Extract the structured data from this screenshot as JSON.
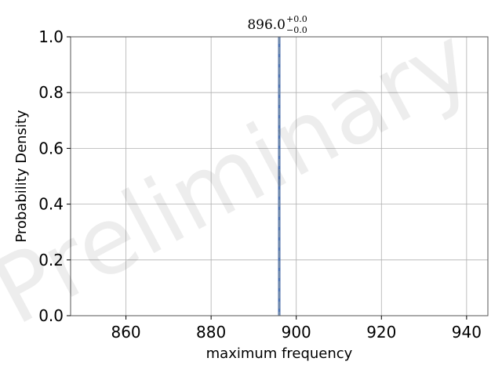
{
  "chart_data": {
    "type": "line",
    "title": "",
    "xlabel": "maximum frequency",
    "ylabel": "Probability Density",
    "xlim": [
      847,
      945
    ],
    "ylim": [
      0,
      1
    ],
    "x_ticks": [
      860,
      880,
      900,
      920,
      940
    ],
    "y_ticks": [
      0.0,
      0.2,
      0.4,
      0.6,
      0.8,
      1.0
    ],
    "x_tick_labels": [
      "860",
      "880",
      "900",
      "920",
      "940"
    ],
    "y_tick_labels": [
      "0.0",
      "0.2",
      "0.4",
      "0.6",
      "0.8",
      "1.0"
    ],
    "grid": true,
    "vertical_lines": [
      {
        "x": 896.0,
        "style": "solid",
        "color": "#4c72b0"
      },
      {
        "x": 896.0,
        "style": "dashed",
        "color": "#7a8fa6"
      }
    ],
    "annotation": {
      "value": "896.0",
      "upper": "+0.0",
      "lower": "−0.0"
    },
    "watermark": "Preliminary"
  }
}
